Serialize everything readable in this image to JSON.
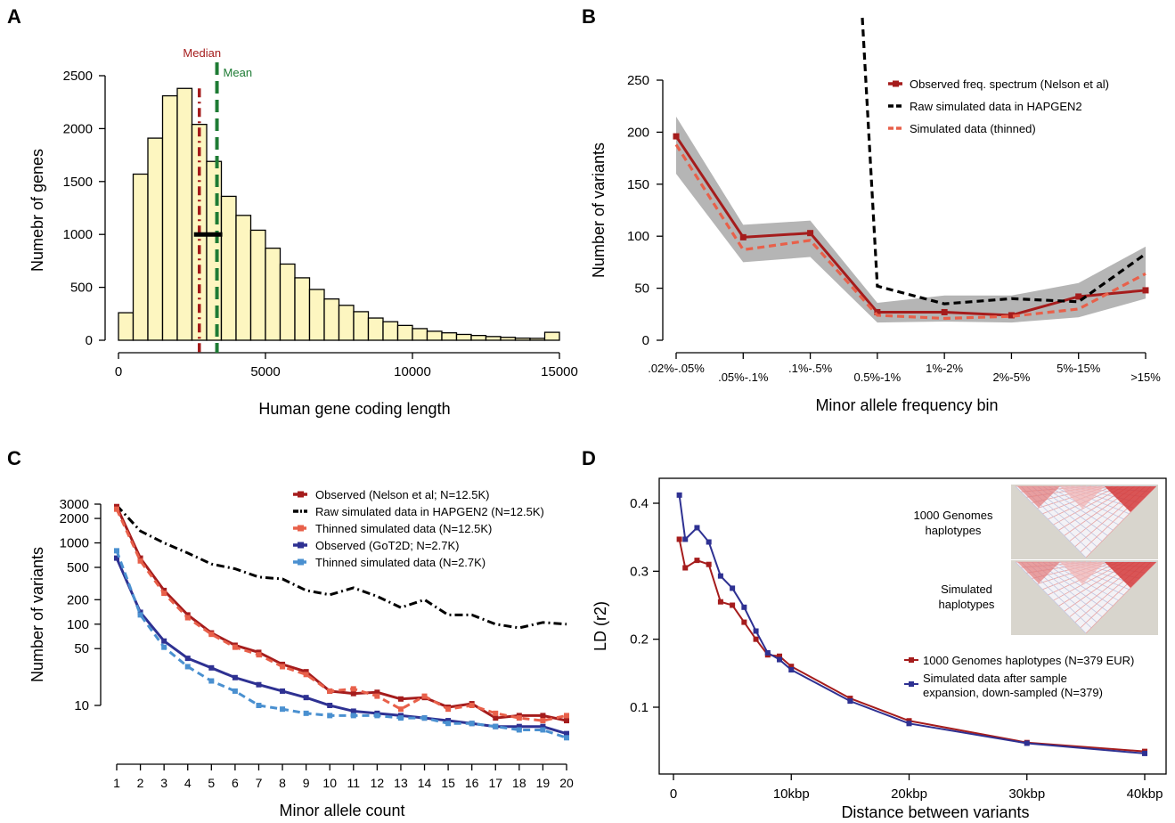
{
  "panels": {
    "a": {
      "letter": "A"
    },
    "b": {
      "letter": "B"
    },
    "c": {
      "letter": "C"
    },
    "d": {
      "letter": "D"
    }
  },
  "chart_data": [
    {
      "id": "A",
      "type": "bar",
      "title": "",
      "xlabel": "Human gene coding length",
      "ylabel": "Numebr of genes",
      "xlim": [
        0,
        15000
      ],
      "ylim": [
        0,
        2500
      ],
      "xticks": [
        "0",
        "5000",
        "10000",
        "15000"
      ],
      "yticks": [
        "0",
        "500",
        "1000",
        "1500",
        "2000",
        "2500"
      ],
      "bin_width": 500,
      "bin_starts": [
        0,
        500,
        1000,
        1500,
        2000,
        2500,
        3000,
        3500,
        4000,
        4500,
        5000,
        5500,
        6000,
        6500,
        7000,
        7500,
        8000,
        8500,
        9000,
        9500,
        10000,
        10500,
        11000,
        11500,
        12000,
        12500,
        13000,
        13500,
        14000,
        14500
      ],
      "values": [
        260,
        1570,
        1910,
        2310,
        2380,
        2040,
        1690,
        1360,
        1180,
        1040,
        870,
        720,
        590,
        480,
        390,
        330,
        270,
        210,
        175,
        140,
        110,
        85,
        70,
        55,
        45,
        35,
        28,
        20,
        18,
        75
      ],
      "median": {
        "label": "Median",
        "value": 2750,
        "color": "#a51c1c"
      },
      "mean": {
        "label": "Mean",
        "value": 3350,
        "color": "#1e7b34"
      },
      "bar_color": "#fdf6c0"
    },
    {
      "id": "B",
      "type": "line",
      "title": "",
      "xlabel": "Minor allele frequency bin",
      "ylabel": "Number of variants",
      "categories": [
        ".02%-.05%",
        ".05%-.1%",
        ".1%-.5%",
        "0.5%-1%",
        "1%-2%",
        "2%-5%",
        "5%-15%",
        ">15%"
      ],
      "ylim": [
        0,
        250
      ],
      "yticks": [
        "0",
        "50",
        "100",
        "150",
        "200",
        "250"
      ],
      "legend_position": "top-right",
      "series": [
        {
          "name": "Observed freq. spectrum (Nelson et al)",
          "values": [
            196,
            99,
            103,
            27,
            27,
            24,
            42,
            48
          ],
          "color": "#a51c1c",
          "style": "solid"
        },
        {
          "name": "Raw simulated data in HAPGEN2",
          "values": [
            null,
            null,
            null,
            52,
            35,
            40,
            37,
            83
          ],
          "color": "#000000",
          "style": "dashed",
          "offscale_value": 310
        },
        {
          "name": "Simulated data (thinned)",
          "values": [
            188,
            87,
            96,
            24,
            21,
            23,
            30,
            64
          ],
          "color": "#e8604a",
          "style": "dashed"
        }
      ],
      "band_upper": [
        215,
        111,
        115,
        36,
        43,
        43,
        55,
        90
      ],
      "band_lower": [
        160,
        75,
        80,
        17,
        18,
        17,
        22,
        40
      ]
    },
    {
      "id": "C",
      "type": "line",
      "title": "",
      "xlabel": "Minor allele count",
      "ylabel": "Number of variants",
      "yscale": "log",
      "x": [
        1,
        2,
        3,
        4,
        5,
        6,
        7,
        8,
        9,
        10,
        11,
        12,
        13,
        14,
        15,
        16,
        17,
        18,
        19,
        20
      ],
      "yticks": [
        "10",
        "50",
        "100",
        "200",
        "500",
        "1000",
        "2000",
        "3000"
      ],
      "legend_position": "top-right",
      "series": [
        {
          "name": "Observed (Nelson et al; N=12.5K)",
          "color": "#a51c1c",
          "style": "solid",
          "values": [
            2800,
            650,
            260,
            130,
            78,
            55,
            45,
            32,
            26,
            15,
            14,
            14.5,
            12,
            12.5,
            9.5,
            10.5,
            7,
            7.5,
            7.5,
            6.5
          ]
        },
        {
          "name": "Raw simulated data in HAPGEN2 (N=12.5K)",
          "color": "#000000",
          "style": "dashdot",
          "values": [
            2900,
            1400,
            1000,
            750,
            550,
            480,
            380,
            360,
            260,
            230,
            280,
            220,
            160,
            200,
            130,
            130,
            100,
            90,
            105,
            100
          ]
        },
        {
          "name": "Thinned simulated data (N=12.5K)",
          "color": "#e8604a",
          "style": "dashed",
          "values": [
            2600,
            600,
            240,
            120,
            75,
            52,
            42,
            30,
            24,
            15,
            16,
            13,
            9,
            13,
            9,
            10,
            8,
            7,
            6.5,
            7.5
          ]
        },
        {
          "name": "Observed (GoT2D; N=2.7K)",
          "color": "#2e3192",
          "style": "solid",
          "values": [
            650,
            140,
            62,
            38,
            29,
            22,
            18,
            15,
            12.5,
            10,
            8.5,
            8,
            7.5,
            7,
            6.5,
            6,
            5.5,
            5.5,
            5.5,
            4.5
          ]
        },
        {
          "name": "Thinned simulated data (N=2.7K)",
          "color": "#4a90d0",
          "style": "dashed",
          "values": [
            800,
            130,
            52,
            30,
            20,
            15,
            10,
            9,
            8,
            7.5,
            7.5,
            7.5,
            7,
            7,
            6,
            6,
            5.5,
            5,
            5,
            4
          ]
        }
      ]
    },
    {
      "id": "D",
      "type": "line",
      "title": "",
      "xlabel": "Distance between variants",
      "ylabel": "LD (r2)",
      "xlim": [
        0,
        40
      ],
      "ylim": [
        0.03,
        0.42
      ],
      "xticks": [
        "0",
        "10kbp",
        "20kbp",
        "30kbp",
        "40kbp"
      ],
      "yticks": [
        "0.1",
        "0.2",
        "0.3",
        "0.4"
      ],
      "legend_position": "bottom-right",
      "x": [
        0.5,
        1,
        2,
        3,
        4,
        5,
        6,
        7,
        8,
        9,
        10,
        15,
        20,
        30,
        40
      ],
      "series": [
        {
          "name": "1000 Genomes haplotypes (N=379 EUR)",
          "color": "#a51c1c",
          "values": [
            0.347,
            0.305,
            0.316,
            0.31,
            0.255,
            0.25,
            0.225,
            0.2,
            0.177,
            0.175,
            0.16,
            0.113,
            0.08,
            0.048,
            0.035
          ]
        },
        {
          "name": "Simulated data after sample expansion, down-sampled (N=379)",
          "color": "#2e3192",
          "values": [
            0.412,
            0.347,
            0.364,
            0.343,
            0.293,
            0.275,
            0.247,
            0.212,
            0.18,
            0.17,
            0.155,
            0.109,
            0.076,
            0.047,
            0.032
          ]
        }
      ],
      "inset_labels": [
        "1000 Genomes haplotypes",
        "Simulated haplotypes"
      ]
    }
  ]
}
